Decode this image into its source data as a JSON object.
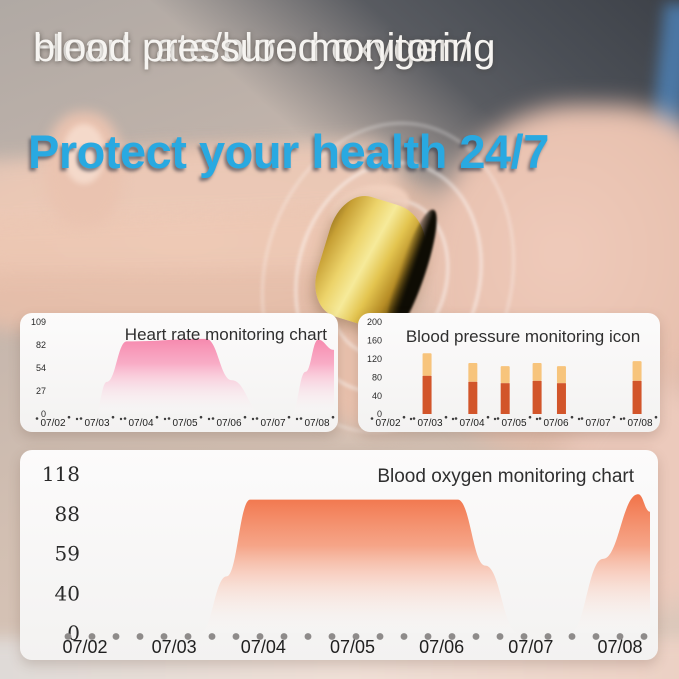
{
  "page": {
    "headline_line1": "Heart rate/blood oxygen/",
    "headline_line2": "blood pressure monitoring",
    "tagline": "Protect your health 24/7"
  },
  "colors": {
    "headline_text": "#f6f4f1",
    "tagline_text": "#29a9e1",
    "panel_background": "#f8f7f6",
    "axis_text": "#2a2a2a",
    "big_dot": "#8e8b8a",
    "speck_dot": "#3d3d3d"
  },
  "chart_data": [
    {
      "id": "heart_rate",
      "type": "area",
      "title": "Heart rate monitoring chart",
      "y_ticks": [
        0,
        27,
        54,
        82,
        109
      ],
      "ylim": [
        0,
        109
      ],
      "x_labels": [
        "07/02",
        "07/03",
        "07/04",
        "07/05",
        "07/06",
        "07/07",
        "07/08"
      ],
      "area_color": "#f36d9a",
      "area_fade": "#f98fb3",
      "points": [
        [
          0,
          0
        ],
        [
          0.158,
          0
        ],
        [
          0.2,
          38
        ],
        [
          0.27,
          86
        ],
        [
          0.55,
          89
        ],
        [
          0.64,
          40
        ],
        [
          0.75,
          0
        ],
        [
          0.85,
          0
        ],
        [
          0.9,
          50
        ],
        [
          0.944,
          88
        ],
        [
          1,
          76
        ]
      ]
    },
    {
      "id": "blood_pressure",
      "type": "stacked-bar",
      "title": "Blood pressure monitoring icon",
      "y_ticks": [
        0,
        40,
        80,
        120,
        160,
        200
      ],
      "ylim": [
        0,
        200
      ],
      "x_labels": [
        "07/02",
        "07/03",
        "07/04",
        "07/05",
        "07/06",
        "07/07",
        "07/08"
      ],
      "bar_colors": [
        "#d2552a",
        "#f7c47c"
      ],
      "bars": [
        {
          "x": 0.93,
          "low": 83,
          "high": 132
        },
        {
          "x": 2.02,
          "low": 70,
          "high": 111
        },
        {
          "x": 2.79,
          "low": 67,
          "high": 104
        },
        {
          "x": 3.55,
          "low": 72,
          "high": 111
        },
        {
          "x": 4.13,
          "low": 67,
          "high": 104
        },
        {
          "x": 5.93,
          "low": 72,
          "high": 115
        }
      ]
    },
    {
      "id": "blood_oxygen",
      "type": "area",
      "title": "Blood oxygen monitoring chart",
      "y_ticks": [
        0,
        40,
        59,
        88,
        118
      ],
      "ylim": [
        0,
        118
      ],
      "x_labels": [
        "07/02",
        "07/03",
        "07/04",
        "07/05",
        "07/06",
        "07/07",
        "07/08"
      ],
      "area_color": "#ef5d2c",
      "area_fade": "#f5845c",
      "points": [
        [
          0,
          0
        ],
        [
          0.235,
          0
        ],
        [
          0.28,
          42
        ],
        [
          0.32,
          99
        ],
        [
          0.673,
          99
        ],
        [
          0.72,
          50
        ],
        [
          0.776,
          0
        ],
        [
          0.864,
          0
        ],
        [
          0.92,
          55
        ],
        [
          0.98,
          103
        ],
        [
          1,
          90
        ]
      ]
    }
  ]
}
